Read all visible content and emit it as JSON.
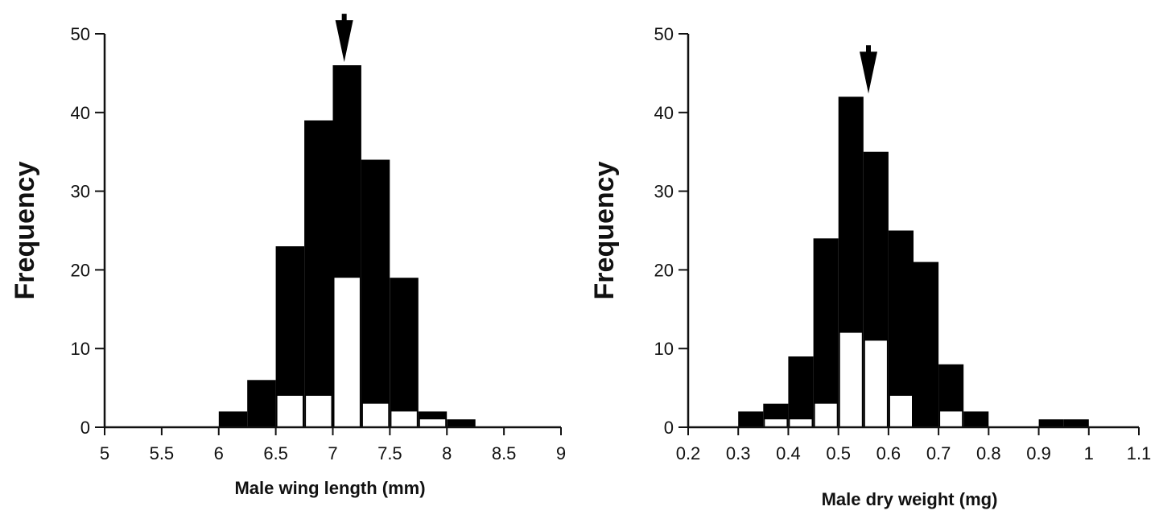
{
  "chart_data": [
    {
      "type": "bar",
      "histogram": true,
      "xlabel": "Male wing length (mm)",
      "ylabel": "Frequency",
      "xlim": [
        5,
        9
      ],
      "ylim": [
        0,
        50
      ],
      "xticks": [
        "5",
        "5.5",
        "6",
        "6.5",
        "7",
        "7.5",
        "8",
        "8.5",
        "9"
      ],
      "yticks": [
        "0",
        "10",
        "20",
        "30",
        "40",
        "50"
      ],
      "bin_edges": [
        6,
        6.25,
        6.5,
        6.75,
        7,
        7.25,
        7.5,
        7.75,
        8,
        8.25
      ],
      "series": [
        {
          "values": [
            2,
            6,
            23,
            39,
            46,
            34,
            19,
            2,
            1
          ],
          "color": "#000000"
        },
        {
          "values": [
            0,
            0,
            4,
            4,
            19,
            3,
            2,
            1,
            0
          ],
          "color": "#ffffff"
        }
      ],
      "arrow_marker_x": 7.1,
      "grid": false
    },
    {
      "type": "bar",
      "histogram": true,
      "xlabel": "Male dry weight (mg)",
      "ylabel": "Frequency",
      "xlim": [
        0.2,
        1.1
      ],
      "ylim": [
        0,
        50
      ],
      "xticks": [
        "0.2",
        "0.3",
        "0.4",
        "0.5",
        "0.6",
        "0.7",
        "0.8",
        "0.9",
        "1",
        "1.1"
      ],
      "yticks": [
        "0",
        "10",
        "20",
        "30",
        "40",
        "50"
      ],
      "bin_edges": [
        0.3,
        0.35,
        0.4,
        0.45,
        0.5,
        0.55,
        0.6,
        0.65,
        0.7,
        0.75,
        0.8,
        0.85,
        0.9,
        0.95,
        1.0
      ],
      "series": [
        {
          "values": [
            2,
            3,
            9,
            24,
            42,
            35,
            25,
            21,
            8,
            2,
            0,
            0,
            1,
            1
          ],
          "color": "#000000"
        },
        {
          "values": [
            0,
            1,
            1,
            3,
            12,
            11,
            4,
            0,
            2,
            0,
            0,
            0,
            0,
            0
          ],
          "color": "#ffffff"
        }
      ],
      "arrow_marker_x": 0.56,
      "grid": false
    }
  ]
}
